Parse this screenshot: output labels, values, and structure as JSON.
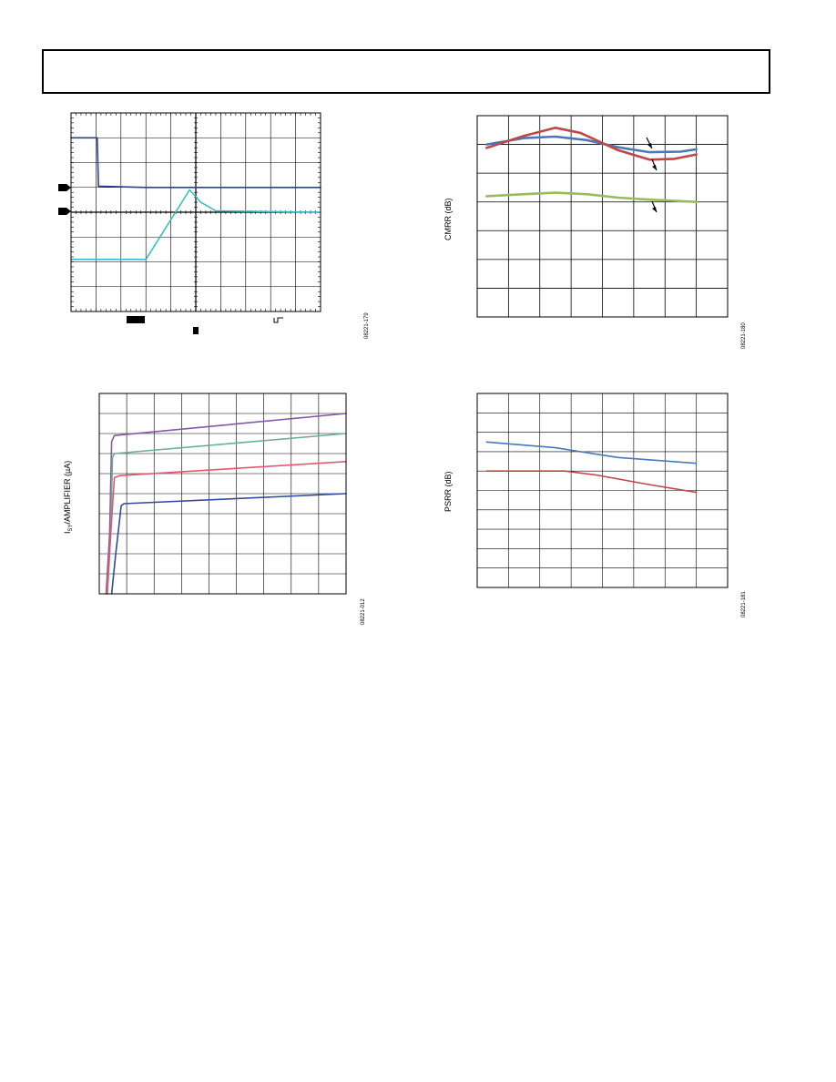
{
  "charts": {
    "scope": {
      "fig_id": "08221-179"
    },
    "cmrr": {
      "fig_id": "08221-180",
      "ylabel": "CMRR (dB)"
    },
    "isy": {
      "fig_id": "08221-012",
      "ylabel_main": "I",
      "ylabel_sub": "SY",
      "ylabel_rest": "/AMPLIFIER (µA)"
    },
    "psrr": {
      "fig_id": "08221-181",
      "ylabel": "PSRR (dB)"
    }
  },
  "chart_data": [
    {
      "type": "line",
      "id": "scope",
      "grid": true,
      "xlim": [
        0,
        10
      ],
      "ylim": [
        0,
        8
      ],
      "series": [
        {
          "color": "#2e3e9a",
          "x": [
            0,
            1.05,
            1.1,
            3,
            5,
            10
          ],
          "y": [
            7.0,
            7.0,
            5.05,
            5.0,
            5.0,
            5.0
          ]
        },
        {
          "color": "#37bfc2",
          "x": [
            0,
            3.0,
            4.75,
            5.2,
            5.8,
            10
          ],
          "y": [
            2.1,
            2.1,
            4.9,
            4.4,
            4.05,
            4.0
          ]
        }
      ]
    },
    {
      "type": "line",
      "id": "cmrr",
      "grid": true,
      "xlim": [
        0,
        8
      ],
      "ylim": [
        0,
        7
      ],
      "series": [
        {
          "color": "#4a78b8",
          "x": [
            0.3,
            1.5,
            2.5,
            3.5,
            4.5,
            5.5,
            6.5,
            7.0
          ],
          "y": [
            6.0,
            6.22,
            6.27,
            6.15,
            5.9,
            5.73,
            5.75,
            5.83
          ]
        },
        {
          "color": "#bf4745",
          "x": [
            0.3,
            1.5,
            2.5,
            3.3,
            4.5,
            5.5,
            6.3,
            7.0
          ],
          "y": [
            5.88,
            6.3,
            6.58,
            6.4,
            5.8,
            5.47,
            5.5,
            5.65
          ]
        },
        {
          "color": "#9aba5c",
          "x": [
            0.3,
            1.5,
            2.5,
            3.5,
            4.5,
            5.5,
            6.5,
            7.0
          ],
          "y": [
            4.2,
            4.27,
            4.32,
            4.27,
            4.15,
            4.08,
            4.03,
            4.0
          ]
        }
      ]
    },
    {
      "type": "line",
      "id": "isy",
      "grid": true,
      "xlim": [
        0,
        9
      ],
      "ylim": [
        0,
        10
      ],
      "series": [
        {
          "color": "#8358a6",
          "x": [
            0.25,
            0.38,
            0.45,
            0.55,
            9
          ],
          "y": [
            0,
            3,
            7.6,
            7.9,
            9.0
          ]
        },
        {
          "color": "#6ab18f",
          "x": [
            0.3,
            0.42,
            0.48,
            0.55,
            9
          ],
          "y": [
            0,
            3,
            6.8,
            7.0,
            8.0
          ]
        },
        {
          "color": "#e5566d",
          "x": [
            0.28,
            0.42,
            0.55,
            0.75,
            9
          ],
          "y": [
            0,
            3,
            5.8,
            5.9,
            6.6
          ]
        },
        {
          "color": "#2f4d9a",
          "x": [
            0.45,
            0.6,
            0.8,
            0.9,
            9
          ],
          "y": [
            0,
            2,
            4.4,
            4.5,
            5.0
          ]
        }
      ]
    },
    {
      "type": "line",
      "id": "psrr",
      "grid": true,
      "xlim": [
        0,
        8
      ],
      "ylim": [
        0,
        10
      ],
      "series": [
        {
          "color": "#4a78b8",
          "x": [
            0.3,
            2.5,
            4.5,
            7.0
          ],
          "y": [
            7.5,
            7.2,
            6.7,
            6.4
          ]
        },
        {
          "color": "#bf4745",
          "x": [
            0.3,
            1.5,
            2.8,
            3.8,
            5.5,
            7.0
          ],
          "y": [
            6.0,
            6.0,
            6.0,
            5.8,
            5.3,
            4.9
          ]
        }
      ]
    }
  ]
}
